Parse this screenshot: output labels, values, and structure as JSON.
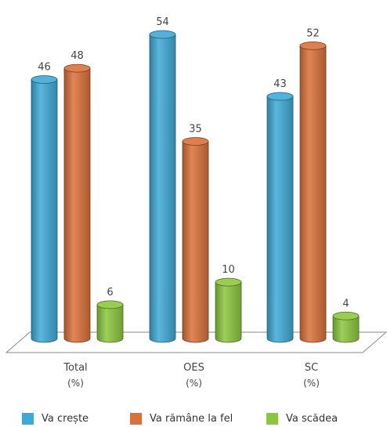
{
  "chart_data": {
    "type": "bar",
    "categories": [
      "Total",
      "OES",
      "SC"
    ],
    "category_sublabels": [
      "(%)",
      "(%)",
      "(%)"
    ],
    "series": [
      {
        "name": "Va crește",
        "values": [
          46,
          54,
          43
        ],
        "color": "#3fa9d6"
      },
      {
        "name": "Va rămâne la fel",
        "values": [
          48,
          35,
          52
        ],
        "color": "#d9713a"
      },
      {
        "name": "Va scădea",
        "values": [
          6,
          10,
          4
        ],
        "color": "#8cc63f"
      }
    ],
    "ylim": [
      0,
      60
    ],
    "grid": false,
    "legend_position": "bottom",
    "style": "3d-cylinder"
  }
}
